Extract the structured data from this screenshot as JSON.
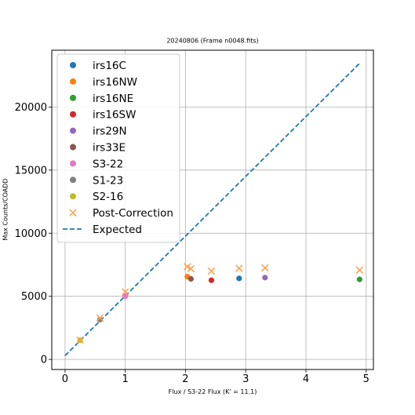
{
  "chart_data": {
    "type": "scatter",
    "title": "20240806 (Frame n0048.fits)",
    "xlabel": "Flux / S3-22 Flux (K' = 11.1)",
    "ylabel": "Max Counts/COADD",
    "xlim": [
      -0.22,
      5.12
    ],
    "ylim": [
      -800,
      24500
    ],
    "xticks": [
      0,
      1,
      2,
      3,
      4,
      5
    ],
    "yticks": [
      0,
      5000,
      10000,
      15000,
      20000
    ],
    "grid": true,
    "legend_position": "top-left",
    "series": [
      {
        "name": "irs16C",
        "color": "#1f77b4",
        "marker": "circle",
        "x": [
          2.89
        ],
        "y": [
          6420
        ]
      },
      {
        "name": "irs16NW",
        "color": "#ff7f0e",
        "marker": "circle",
        "x": [
          2.03
        ],
        "y": [
          6560
        ]
      },
      {
        "name": "irs16NE",
        "color": "#2ca02c",
        "marker": "circle",
        "x": [
          4.89
        ],
        "y": [
          6340
        ]
      },
      {
        "name": "irs16SW",
        "color": "#d62728",
        "marker": "circle",
        "x": [
          2.43
        ],
        "y": [
          6270
        ]
      },
      {
        "name": "irs29N",
        "color": "#9467bd",
        "marker": "circle",
        "x": [
          3.32
        ],
        "y": [
          6480
        ]
      },
      {
        "name": "irs33E",
        "color": "#8c564b",
        "marker": "circle",
        "x": [
          2.09
        ],
        "y": [
          6380
        ]
      },
      {
        "name": "S3-22",
        "color": "#e377c2",
        "marker": "circle",
        "x": [
          1.0
        ],
        "y": [
          5000
        ]
      },
      {
        "name": "S1-23",
        "color": "#7f7f7f",
        "marker": "circle",
        "x": [
          0.58
        ],
        "y": [
          3150
        ]
      },
      {
        "name": "S2-16",
        "color": "#bcbd22",
        "marker": "circle",
        "x": [
          0.25
        ],
        "y": [
          1520
        ]
      },
      {
        "name": "Post-Correction",
        "color": "#ff9f4a",
        "marker": "x",
        "x": [
          2.89,
          2.03,
          4.89,
          2.43,
          3.32,
          2.09,
          1.0,
          0.58,
          0.25
        ],
        "y": [
          7220,
          7350,
          7080,
          7000,
          7260,
          7190,
          5350,
          3280,
          1540
        ]
      },
      {
        "name": "Expected",
        "color": "#1f77b4",
        "marker": "dashed-line",
        "x": [
          0,
          4.9
        ],
        "y": [
          300,
          23500
        ]
      }
    ]
  }
}
